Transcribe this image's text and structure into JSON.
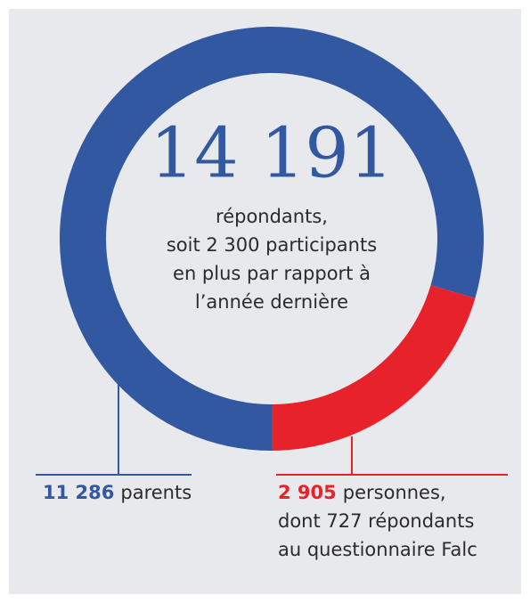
{
  "chart_data": {
    "type": "pie",
    "values": [
      11286,
      2905
    ],
    "value_labels": [
      "11 286",
      "2 905"
    ],
    "colors": [
      "#3158a1",
      "#e8222b"
    ],
    "labels": [
      [
        "parents"
      ],
      [
        "personnes,",
        "dont 727 répondants",
        "au questionnaire Falc"
      ]
    ],
    "total": {
      "value": 14191,
      "label": "14 191"
    },
    "center_text": [
      "répondants,",
      "soit 2 300 participants",
      "en plus par rapport à",
      "l’année dernière"
    ]
  }
}
